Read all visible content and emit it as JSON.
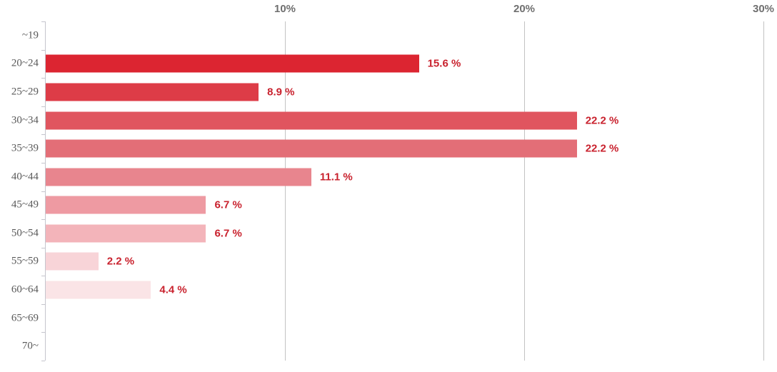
{
  "chart_data": {
    "type": "bar",
    "orientation": "horizontal",
    "title": "",
    "xlabel": "",
    "ylabel": "",
    "xlim": [
      0,
      30
    ],
    "grid": true,
    "legend": false,
    "x_ticks": [
      {
        "label": "10%",
        "value": 10
      },
      {
        "label": "20%",
        "value": 20
      },
      {
        "label": "30%",
        "value": 30
      }
    ],
    "categories": [
      "~19",
      "20~24",
      "25~29",
      "30~34",
      "35~39",
      "40~44",
      "45~49",
      "50~54",
      "55~59",
      "60~64",
      "65~69",
      "70~"
    ],
    "values": [
      0,
      15.6,
      8.9,
      22.2,
      22.2,
      11.1,
      6.7,
      6.7,
      2.2,
      4.4,
      0,
      0
    ],
    "rows": [
      {
        "category": "~19",
        "value": 0,
        "display": "",
        "color": ""
      },
      {
        "category": "20~24",
        "value": 15.6,
        "display": "15.6 %",
        "color": "#dc2531"
      },
      {
        "category": "25~29",
        "value": 8.9,
        "display": "8.9 %",
        "color": "#dd3c47"
      },
      {
        "category": "30~34",
        "value": 22.2,
        "display": "22.2 %",
        "color": "#e0555f"
      },
      {
        "category": "35~39",
        "value": 22.2,
        "display": "22.2 %",
        "color": "#e36e77"
      },
      {
        "category": "40~44",
        "value": 11.1,
        "display": "11.1 %",
        "color": "#e8858e"
      },
      {
        "category": "45~49",
        "value": 6.7,
        "display": "6.7 %",
        "color": "#ee9aa2"
      },
      {
        "category": "50~54",
        "value": 6.7,
        "display": "6.7 %",
        "color": "#f3b4ba"
      },
      {
        "category": "55~59",
        "value": 2.2,
        "display": "2.2 %",
        "color": "#f8d4d8"
      },
      {
        "category": "60~64",
        "value": 4.4,
        "display": "4.4 %",
        "color": "#fae4e6"
      },
      {
        "category": "65~69",
        "value": 0,
        "display": "",
        "color": ""
      },
      {
        "category": "70~",
        "value": 0,
        "display": "",
        "color": ""
      }
    ],
    "colors": {
      "axis": "#c5c5cd",
      "gridline": "#c3c3c3",
      "category_label": "#595959",
      "tick_label": "#6f6f6f",
      "value_label": "#c9222e",
      "background": "#ffffff"
    }
  }
}
